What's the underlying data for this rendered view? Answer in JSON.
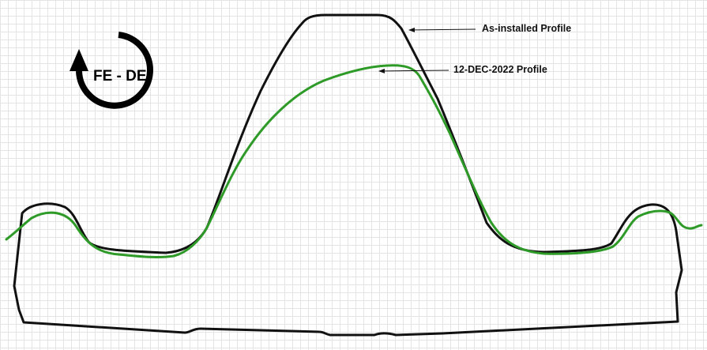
{
  "rotation_indicator": {
    "text": "FE - DE",
    "icon": "counterclockwise-arrow-icon"
  },
  "callouts": {
    "as_installed": "As-installed Profile",
    "measured": "12-DEC-2022 Profile"
  },
  "colors": {
    "as_installed": "#111111",
    "measured": "#2e9a27",
    "grid": "#e4e4e4"
  }
}
